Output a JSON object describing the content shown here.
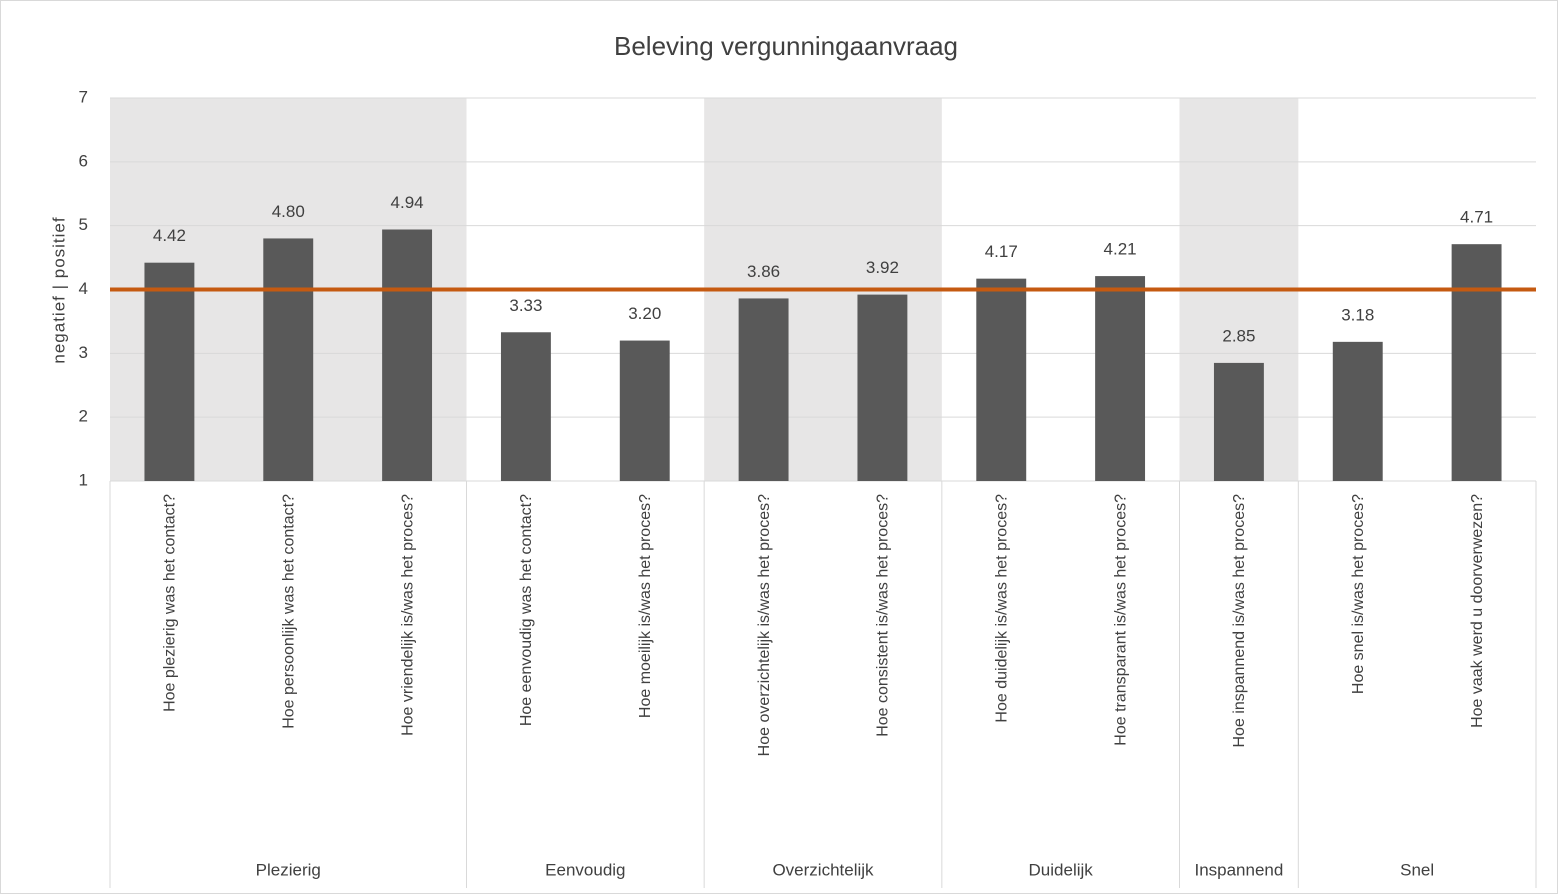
{
  "chart_data": {
    "type": "bar",
    "title": "Beleving vergunningaanvraag",
    "y_label": "negatief | positief",
    "categories": [
      "Hoe plezierig was het contact?",
      "Hoe persoonlijk was het contact?",
      "Hoe vriendelijk is/was het proces?",
      "Hoe eenvoudig was het contact?",
      "Hoe moeilijk is/was het proces?",
      "Hoe overzichtelijk is/was het proces?",
      "Hoe consistent is/was het proces?",
      "Hoe duidelijk is/was het proces?",
      "Hoe transparant is/was het proces?",
      "Hoe inspannend is/was het proces?",
      "Hoe snel is/was het proces?",
      "Hoe vaak werd u doorverwezen?"
    ],
    "values": [
      4.42,
      4.8,
      4.94,
      3.33,
      3.2,
      3.86,
      3.92,
      4.17,
      4.21,
      2.85,
      3.18,
      4.71
    ],
    "value_labels": [
      "4.42",
      "4.80",
      "4.94",
      "3.33",
      "3.20",
      "3.86",
      "3.92",
      "4.17",
      "4.21",
      "2.85",
      "3.18",
      "4.71"
    ],
    "color": "#595959",
    "groups": [
      {
        "label": "Plezierig",
        "span": 3,
        "shaded": true
      },
      {
        "label": "Eenvoudig",
        "span": 2,
        "shaded": false
      },
      {
        "label": "Overzichtelijk",
        "span": 2,
        "shaded": true
      },
      {
        "label": "Duidelijk",
        "span": 2,
        "shaded": false
      },
      {
        "label": "Inspannend",
        "span": 1,
        "shaded": true
      },
      {
        "label": "Snel",
        "span": 2,
        "shaded": false
      }
    ],
    "shade_color": "#e7e6e6",
    "reference_line": {
      "value": 4,
      "color": "#c55a11"
    },
    "ylim": [
      1,
      7
    ],
    "yticks": [
      1,
      2,
      3,
      4,
      5,
      6,
      7
    ],
    "grid": true
  }
}
